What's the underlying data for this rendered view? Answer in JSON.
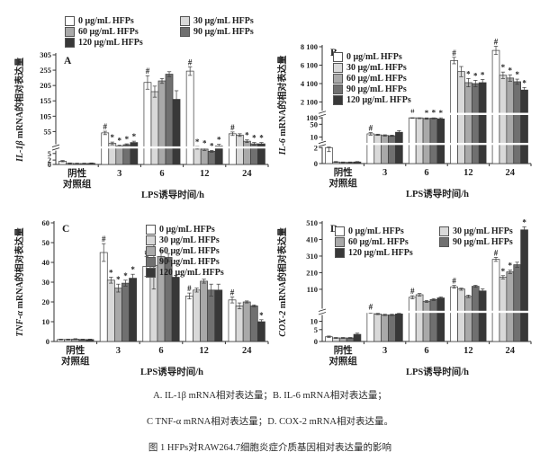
{
  "colors": {
    "series": [
      "#ffffff",
      "#d9d9d9",
      "#a9a9a9",
      "#707070",
      "#383838"
    ],
    "axis": "#333333",
    "text": "#1f1f1f"
  },
  "legend": {
    "labels": [
      "0 μg/mL HFPs",
      "30 μg/mL HFPs",
      "60 μg/mL HFPs",
      "90 μg/mL HFPs",
      "120 μg/mL HFPs"
    ]
  },
  "xaxis": {
    "title": "LPS诱导时间/h",
    "groups": [
      "阴性|对照组",
      "3",
      "6",
      "12",
      "24"
    ]
  },
  "chart_data": [
    {
      "type": "bar",
      "panel": "A",
      "ylabel_gene": "IL-1β",
      "ylabel_rest": " mRNA的相对表达量",
      "xlabel": "LPS诱导时间/h",
      "categories": [
        "阴性对照组",
        "3",
        "6",
        "12",
        "24"
      ],
      "series_labels": [
        "0 μg/mL HFPs",
        "30 μg/mL HFPs",
        "60 μg/mL HFPs",
        "90 μg/mL HFPs",
        "120 μg/mL HFPs"
      ],
      "yticks": [
        {
          "v": 0,
          "l": "0"
        },
        {
          "v": 2,
          "l": "2"
        },
        {
          "v": 5,
          "l": "5"
        },
        {
          "v": 55,
          "l": "55"
        },
        {
          "v": 105,
          "l": "105"
        },
        {
          "v": 155,
          "l": "155"
        },
        {
          "v": 205,
          "l": "205"
        },
        {
          "v": 255,
          "l": "255"
        },
        {
          "v": 305,
          "l": "305"
        }
      ],
      "anchors": [
        [
          0,
          0
        ],
        [
          5,
          0.1
        ],
        [
          55,
          0.3
        ],
        [
          305,
          1.0
        ]
      ],
      "breaks": [
        0.155
      ],
      "values": [
        [
          1.5,
          0.5,
          0.4,
          0.4,
          0.5
        ],
        [
          52,
          28,
          22,
          25,
          30
        ],
        [
          215,
          185,
          220,
          242,
          160
        ],
        [
          252,
          18,
          15,
          10,
          22
        ],
        [
          50,
          47,
          33,
          27,
          27
        ]
      ],
      "errors": [
        [
          0.3,
          0.2,
          0.2,
          0.2,
          0.2
        ],
        [
          4,
          3,
          2,
          2,
          3
        ],
        [
          22,
          18,
          8,
          8,
          28
        ],
        [
          14,
          3,
          3,
          2,
          4
        ],
        [
          4,
          3,
          3,
          3,
          3
        ]
      ],
      "marks": [
        [
          "",
          "",
          "",
          "",
          ""
        ],
        [
          "#",
          "*",
          "*",
          "*",
          "*"
        ],
        [
          "#",
          "",
          "",
          "",
          ""
        ],
        [
          "#",
          "*",
          "*",
          "*",
          "*"
        ],
        [
          "#",
          "",
          "*",
          "*",
          "*"
        ]
      ]
    },
    {
      "type": "bar",
      "panel": "B",
      "ylabel_gene": "IL-6",
      "ylabel_rest": " mRNA的相对表达量",
      "xlabel": "LPS诱导时间/h",
      "categories": [
        "阴性对照组",
        "3",
        "6",
        "12",
        "24"
      ],
      "series_labels": [
        "0 μg/mL HFPs",
        "30 μg/mL HFPs",
        "60 μg/mL HFPs",
        "90 μg/mL HFPs",
        "120 μg/mL HFPs"
      ],
      "yticks": [
        {
          "v": 0,
          "l": "0"
        },
        {
          "v": 2,
          "l": "2"
        },
        {
          "v": 10,
          "l": "10"
        },
        {
          "v": 50,
          "l": "50"
        },
        {
          "v": 100,
          "l": "100"
        },
        {
          "v": 2100,
          "l": "2 100"
        },
        {
          "v": 4100,
          "l": "4 100"
        },
        {
          "v": 6100,
          "l": "6 100"
        },
        {
          "v": 8100,
          "l": "8 100"
        }
      ],
      "anchors": [
        [
          0,
          0
        ],
        [
          2,
          0.136
        ],
        [
          10,
          0.227
        ],
        [
          50,
          0.336
        ],
        [
          100,
          0.391
        ],
        [
          2100,
          0.527
        ],
        [
          8100,
          1.0
        ]
      ],
      "breaks": [
        0.168,
        0.425
      ],
      "values": [
        [
          2,
          0.2,
          0.15,
          0.15,
          0.2
        ],
        [
          20,
          17,
          15,
          14,
          25
        ],
        [
          105,
          100,
          95,
          98,
          92
        ],
        [
          6600,
          5400,
          4200,
          4100,
          4200
        ],
        [
          7700,
          5000,
          4700,
          4300,
          3400
        ]
      ],
      "errors": [
        [
          0.5,
          0.05,
          0.05,
          0.05,
          0.05
        ],
        [
          4,
          2,
          2,
          2,
          5
        ],
        [
          8,
          6,
          6,
          6,
          9
        ],
        [
          350,
          550,
          450,
          350,
          350
        ],
        [
          450,
          350,
          350,
          280,
          280
        ]
      ],
      "marks": [
        [
          "",
          "",
          "",
          "",
          ""
        ],
        [
          "#",
          "",
          "",
          "",
          ""
        ],
        [
          "#",
          "",
          "*",
          "*",
          "*"
        ],
        [
          "#",
          "",
          "*",
          "*",
          "*"
        ],
        [
          "#",
          "*",
          "*",
          "*",
          "*"
        ]
      ]
    },
    {
      "type": "bar",
      "panel": "C",
      "ylabel_gene": "TNF-α",
      "ylabel_rest": " mRNA的相对表达量",
      "xlabel": "LPS诱导时间/h",
      "categories": [
        "阴性对照组",
        "3",
        "6",
        "12",
        "24"
      ],
      "series_labels": [
        "0 μg/mL HFPs",
        "30 μg/mL HFPs",
        "60 μg/mL HFPs",
        "90 μg/mL HFPs",
        "120 μg/mL HFPs"
      ],
      "yticks": [
        {
          "v": 0,
          "l": "0"
        },
        {
          "v": 10,
          "l": "10"
        },
        {
          "v": 20,
          "l": "20"
        },
        {
          "v": 30,
          "l": "30"
        },
        {
          "v": 40,
          "l": "40"
        },
        {
          "v": 50,
          "l": "50"
        },
        {
          "v": 60,
          "l": "60"
        }
      ],
      "anchors": [
        [
          0,
          0
        ],
        [
          60,
          1.0
        ]
      ],
      "breaks": [],
      "values": [
        [
          1,
          1,
          1.2,
          1,
          1
        ],
        [
          45,
          31,
          27,
          29.5,
          32
        ],
        [
          38,
          38.5,
          43,
          42.5,
          32.5
        ],
        [
          23,
          26,
          30.5,
          26,
          26
        ],
        [
          21,
          18,
          20,
          18,
          10
        ]
      ],
      "errors": [
        [
          0.2,
          0.2,
          0.2,
          0.2,
          0.2
        ],
        [
          4.5,
          1.5,
          2,
          1.5,
          2
        ],
        [
          5,
          12,
          3,
          2,
          1
        ],
        [
          1.5,
          1,
          1,
          3,
          3
        ],
        [
          1.5,
          1.5,
          0.5,
          0.5,
          1
        ]
      ],
      "marks": [
        [
          "",
          "",
          "",
          "",
          ""
        ],
        [
          "#",
          "*",
          "*",
          "*",
          "*"
        ],
        [
          "#",
          "",
          "",
          "",
          ""
        ],
        [
          "#",
          "",
          "",
          "",
          ""
        ],
        [
          "#",
          "",
          "",
          "",
          "*"
        ]
      ]
    },
    {
      "type": "bar",
      "panel": "D",
      "ylabel_gene": "COX-2",
      "ylabel_rest": " mRNA的相对表达量",
      "xlabel": "LPS诱导时间/h",
      "categories": [
        "阴性对照组",
        "3",
        "6",
        "12",
        "24"
      ],
      "series_labels": [
        "0 μg/mL HFPs",
        "30 μg/mL HFPs",
        "60 μg/mL HFPs",
        "90 μg/mL HFPs",
        "120 μg/mL HFPs"
      ],
      "yticks": [
        {
          "v": 0,
          "l": "0"
        },
        {
          "v": 5,
          "l": "5"
        },
        {
          "v": 10,
          "l": "10"
        },
        {
          "v": 110,
          "l": "110"
        },
        {
          "v": 210,
          "l": "210"
        },
        {
          "v": 310,
          "l": "310"
        },
        {
          "v": 410,
          "l": "410"
        },
        {
          "v": 510,
          "l": "510"
        }
      ],
      "anchors": [
        [
          0,
          0
        ],
        [
          5,
          0.1
        ],
        [
          10,
          0.17
        ],
        [
          110,
          0.44
        ],
        [
          510,
          1.0
        ]
      ],
      "breaks": [
        0.25
      ],
      "values": [
        [
          2,
          1.5,
          1.5,
          1.5,
          3
        ],
        [
          38,
          33,
          30,
          30,
          33
        ],
        [
          85,
          93,
          72,
          78,
          83
        ],
        [
          125,
          112,
          88,
          128,
          105
        ],
        [
          290,
          182,
          215,
          258,
          468
        ]
      ],
      "errors": [
        [
          0.3,
          0.2,
          0.2,
          0.2,
          0.5
        ],
        [
          3,
          2,
          2,
          2,
          2
        ],
        [
          5,
          4,
          3,
          3,
          3
        ],
        [
          8,
          5,
          4,
          6,
          8
        ],
        [
          12,
          10,
          10,
          15,
          18
        ]
      ],
      "marks": [
        [
          "",
          "",
          "",
          "",
          ""
        ],
        [
          "#",
          "",
          "",
          "",
          ""
        ],
        [
          "#",
          "",
          "",
          "",
          ""
        ],
        [
          "#",
          "",
          "",
          "",
          ""
        ],
        [
          "#",
          "*",
          "*",
          "",
          "*"
        ]
      ]
    }
  ],
  "caption": {
    "line1": "A. IL-1β mRNA相对表达量；B. IL-6 mRNA相对表达量；",
    "line2": "C TNF-α mRNA相对表达量；D. COX-2 mRNA相对表达量。",
    "line3": "图 1 HFPs对RAW264.7细胞炎症介质基因相对表达量的影响"
  }
}
